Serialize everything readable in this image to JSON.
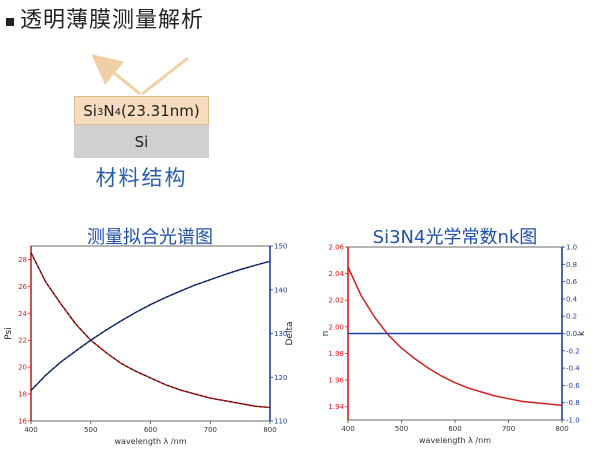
{
  "heading": "透明薄膜测量解析",
  "diagram": {
    "top_layer": {
      "pre": "Si",
      "sub1": "3",
      "mid": "N",
      "sub2": "4",
      "post": " (23.31nm)"
    },
    "bottom_layer": "Si",
    "caption": "材料结构",
    "colors": {
      "top_fill": "#f7dcbf",
      "bottom_fill": "#d0d0d0",
      "arrow": "#f0cfa6"
    }
  },
  "chart_data": [
    {
      "type": "line",
      "title": "测量拟合光谱图",
      "xlabel": "wavelength λ /nm",
      "ylabel_left": "Psi",
      "ylabel_right": "Delta",
      "xlim": [
        400,
        800
      ],
      "xticks": [
        400,
        500,
        600,
        700,
        800
      ],
      "ylim_left": [
        16,
        29
      ],
      "yticks_left": [
        16,
        18,
        20,
        22,
        24,
        26,
        28
      ],
      "ylim_right": [
        110,
        150
      ],
      "yticks_right": [
        110,
        120,
        130,
        140,
        150
      ],
      "colors": {
        "left_axis": "#d22020",
        "right_axis": "#1f3f9e",
        "fit": "#111111"
      },
      "series": [
        {
          "axis": "left",
          "color": "#d22020",
          "x": [
            400,
            425,
            450,
            475,
            500,
            525,
            550,
            575,
            600,
            625,
            650,
            675,
            700,
            725,
            750,
            775,
            800
          ],
          "y": [
            28.5,
            26.3,
            24.7,
            23.2,
            22.0,
            21.1,
            20.3,
            19.7,
            19.2,
            18.7,
            18.3,
            18.0,
            17.7,
            17.5,
            17.3,
            17.1,
            17.0
          ]
        },
        {
          "axis": "right",
          "color": "#1f3f9e",
          "x": [
            400,
            425,
            450,
            475,
            500,
            525,
            550,
            575,
            600,
            625,
            650,
            675,
            700,
            725,
            750,
            775,
            800
          ],
          "y": [
            117.0,
            120.5,
            123.5,
            126.0,
            128.5,
            130.7,
            132.8,
            134.8,
            136.6,
            138.2,
            139.7,
            141.1,
            142.3,
            143.5,
            144.6,
            145.6,
            146.5
          ]
        }
      ]
    },
    {
      "type": "line",
      "title": "Si3N4光学常数nk图",
      "xlabel": "wavelength λ /nm",
      "ylabel_left": "n",
      "ylabel_right": "k",
      "xlim": [
        400,
        800
      ],
      "xticks": [
        400,
        500,
        600,
        700,
        800
      ],
      "ylim_left": [
        1.93,
        2.06
      ],
      "yticks_left": [
        1.94,
        1.96,
        1.98,
        2.0,
        2.02,
        2.04,
        2.06
      ],
      "ylim_right": [
        -1.0,
        1.0
      ],
      "yticks_right": [
        -1.0,
        -0.8,
        -0.6,
        -0.4,
        -0.2,
        0.0,
        0.2,
        0.4,
        0.6,
        0.8,
        1.0
      ],
      "colors": {
        "left_axis": "#d22020",
        "right_axis": "#1f3f9e"
      },
      "series": [
        {
          "axis": "left",
          "color": "#d22020",
          "x": [
            400,
            425,
            450,
            475,
            500,
            525,
            550,
            575,
            600,
            625,
            650,
            675,
            700,
            725,
            750,
            775,
            800
          ],
          "y": [
            2.045,
            2.023,
            2.007,
            1.994,
            1.984,
            1.976,
            1.969,
            1.963,
            1.958,
            1.954,
            1.951,
            1.948,
            1.946,
            1.944,
            1.943,
            1.942,
            1.941
          ]
        },
        {
          "axis": "right",
          "color": "#1f3f9e",
          "x": [
            400,
            800
          ],
          "y": [
            0.0,
            0.0
          ]
        }
      ]
    }
  ]
}
